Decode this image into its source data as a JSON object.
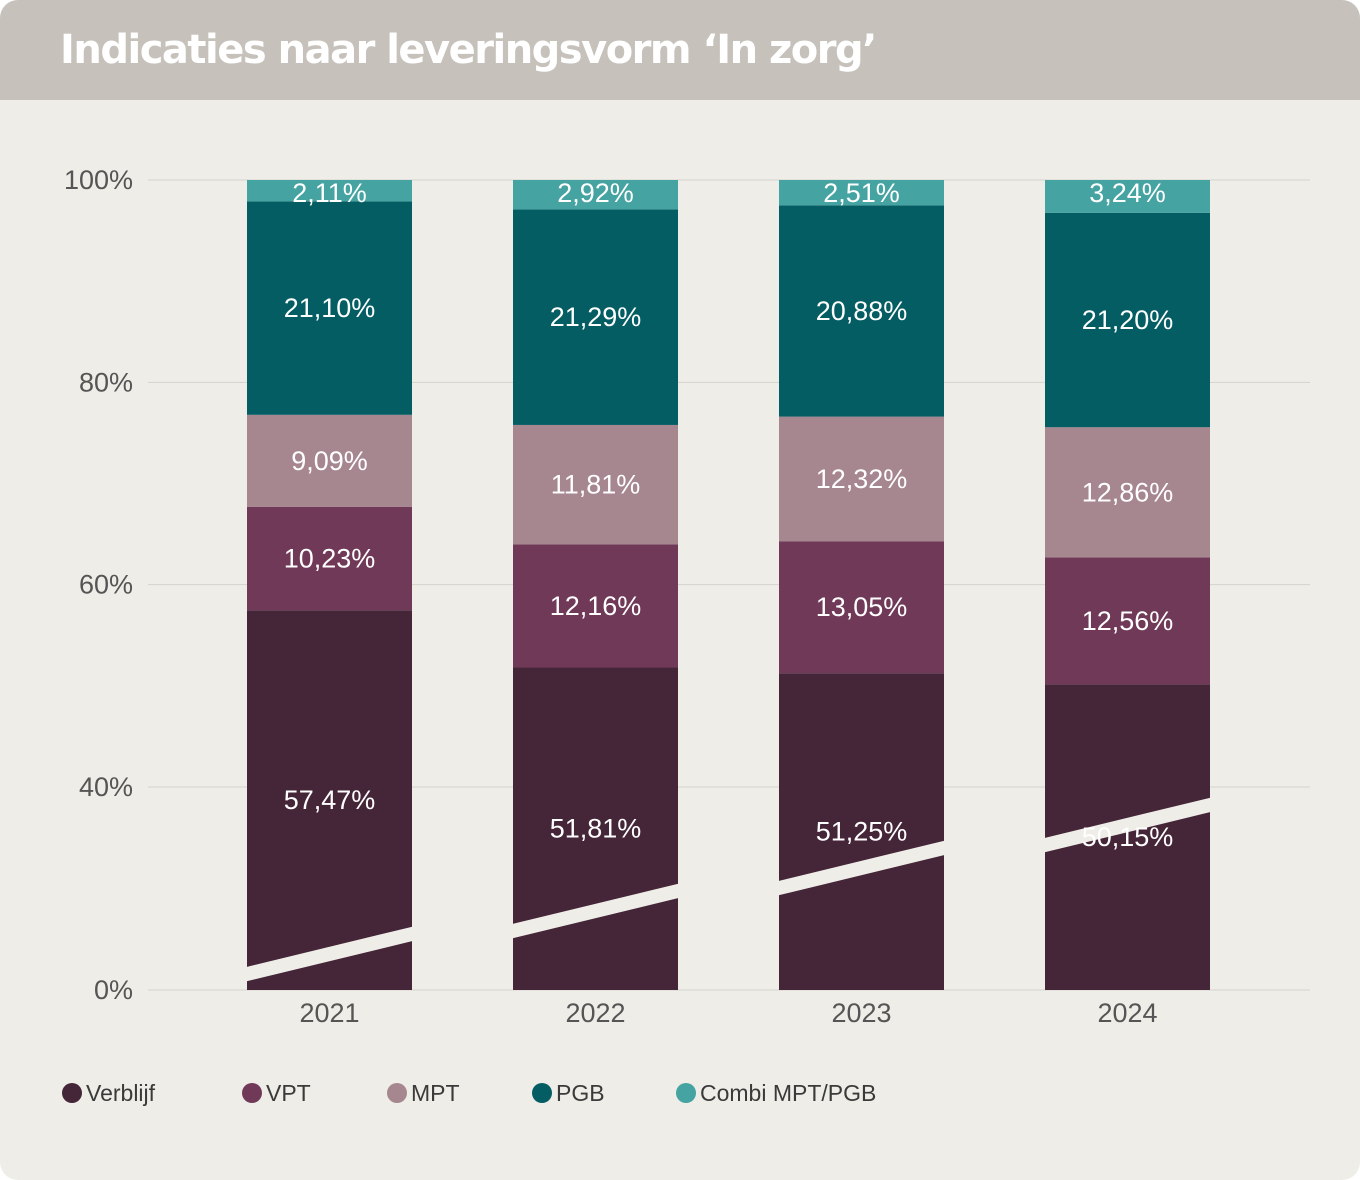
{
  "title": "Indicaties naar leveringsvorm ‘In zorg’",
  "chart_data": {
    "type": "bar",
    "stacked": true,
    "normalized": true,
    "categories": [
      "2021",
      "2022",
      "2023",
      "2024"
    ],
    "y_ticks": [
      "0%",
      "40%",
      "60%",
      "80%",
      "100%"
    ],
    "y_tick_values": [
      0,
      40,
      60,
      80,
      100
    ],
    "ylim": [
      0,
      100
    ],
    "y_axis_break": true,
    "grid": true,
    "legend_position": "bottom",
    "series": [
      {
        "name": "Verblijf",
        "color": "#452538",
        "values": [
          57.47,
          51.81,
          51.25,
          50.15
        ],
        "labels": [
          "57,47%",
          "51,81%",
          "51,25%",
          "50,15%"
        ]
      },
      {
        "name": "VPT",
        "color": "#703957",
        "values": [
          10.23,
          12.16,
          13.05,
          12.56
        ],
        "labels": [
          "10,23%",
          "12,16%",
          "13,05%",
          "12,56%"
        ]
      },
      {
        "name": "MPT",
        "color": "#a6868f",
        "values": [
          9.09,
          11.81,
          12.32,
          12.86
        ],
        "labels": [
          "9,09%",
          "11,81%",
          "12,32%",
          "12,86%"
        ]
      },
      {
        "name": "PGB",
        "color": "#045d63",
        "values": [
          21.1,
          21.29,
          20.88,
          21.2
        ],
        "labels": [
          "21,10%",
          "21,29%",
          "20,88%",
          "21,20%"
        ]
      },
      {
        "name": "Combi MPT/PGB",
        "color": "#45a3a2",
        "values": [
          2.11,
          2.92,
          2.51,
          3.24
        ],
        "labels": [
          "2,11%",
          "2,92%",
          "2,51%",
          "3,24%"
        ]
      }
    ]
  }
}
